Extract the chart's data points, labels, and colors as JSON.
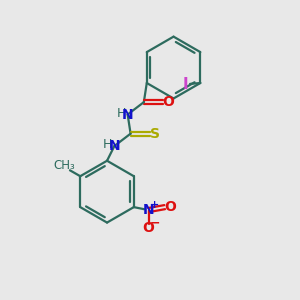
{
  "bg_color": "#e8e8e8",
  "ring_color": "#2d6b5e",
  "iodo_color": "#cc44cc",
  "nitrogen_color": "#1111cc",
  "oxygen_color": "#dd1111",
  "sulfur_color": "#aaaa00",
  "line_width": 1.6,
  "fig_width": 3.0,
  "fig_height": 3.0,
  "dpi": 100,
  "xlim": [
    0,
    10
  ],
  "ylim": [
    0,
    10
  ]
}
